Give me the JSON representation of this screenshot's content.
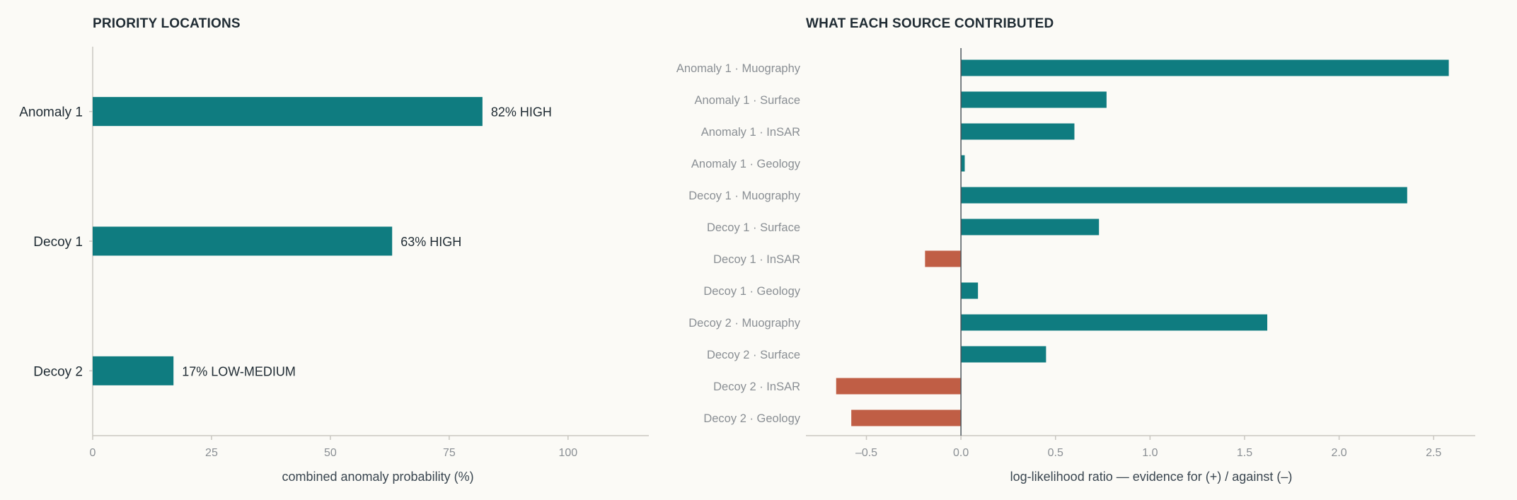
{
  "colors": {
    "background": "#fbfaf6",
    "positive": "#0f7c80",
    "negative": "#c05e45",
    "axis": "#c9c7c1",
    "text_dark": "#1f2b33",
    "text_muted": "#8a8f94"
  },
  "chart_data": [
    {
      "type": "bar",
      "orientation": "horizontal",
      "title": "PRIORITY LOCATIONS",
      "xlabel": "combined anomaly probability (%)",
      "ylabel": "",
      "xlim": [
        0,
        117
      ],
      "xticks": [
        "0",
        "25",
        "50",
        "75",
        "100"
      ],
      "categories": [
        "Anomaly 1",
        "Decoy 1",
        "Decoy 2"
      ],
      "values": [
        82,
        63,
        17
      ],
      "data_labels": [
        "82%  HIGH",
        "63%  HIGH",
        "17%  LOW-MEDIUM"
      ],
      "grid": false
    },
    {
      "type": "bar",
      "orientation": "horizontal",
      "title": "WHAT EACH SOURCE CONTRIBUTED",
      "xlabel": "log-likelihood ratio — evidence for (+) / against (–)",
      "ylabel": "",
      "xlim": [
        -0.82,
        2.72
      ],
      "xticks": [
        "–0.5",
        "0.0",
        "0.5",
        "1.0",
        "1.5",
        "2.0",
        "2.5"
      ],
      "categories": [
        "Anomaly 1 · Muography",
        "Anomaly 1 · Surface",
        "Anomaly 1 · InSAR",
        "Anomaly 1 · Geology",
        "Decoy 1 · Muography",
        "Decoy 1 · Surface",
        "Decoy 1 · InSAR",
        "Decoy 1 · Geology",
        "Decoy 2 · Muography",
        "Decoy 2 · Surface",
        "Decoy 2 · InSAR",
        "Decoy 2 · Geology"
      ],
      "values": [
        2.58,
        0.77,
        0.6,
        0.02,
        2.36,
        0.73,
        -0.19,
        0.09,
        1.62,
        0.45,
        -0.66,
        -0.58
      ],
      "grid": false
    }
  ]
}
